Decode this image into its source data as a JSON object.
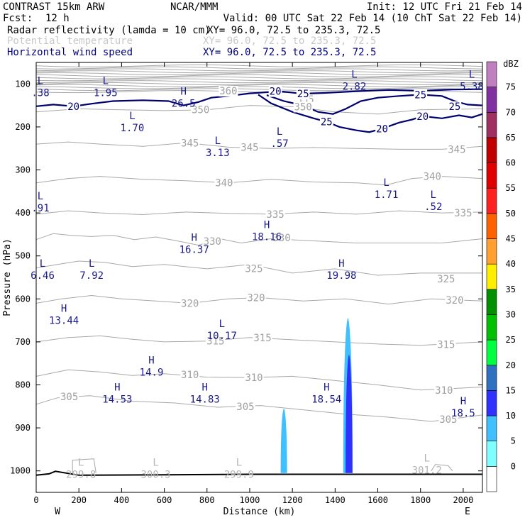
{
  "header": {
    "model": "CONTRAST 15km ARW",
    "center": "NCAR/MMM",
    "init": "Init: 12 UTC Fri 21 Feb 14",
    "fcst_label": "Fcst:",
    "fcst_value": "12 h",
    "valid": "Valid: 00 UTC Sat 22 Feb 14 (10 ChT Sat 22 Feb 14)",
    "fields": [
      {
        "name": "Radar reflectivity (lamda = 10 cm)",
        "xy": "XY=  96.0, 72.5 to 235.3, 72.5",
        "color": "#000000"
      },
      {
        "name": "Potential temperature",
        "xy": "XY=  96.0, 72.5 to 235.3, 72.5",
        "color": "#c8c8c8"
      },
      {
        "name": "Horizontal wind speed",
        "xy": "XY=  96.0, 72.5 to 235.3, 72.5",
        "color": "#000080"
      }
    ]
  },
  "chart_data": {
    "type": "cross-section contour",
    "xlabel": "Distance (km)",
    "ylabel": "Pressure (hPa)",
    "x_end_labels": {
      "left": "W",
      "right": "E"
    },
    "xlim": [
      0,
      2090
    ],
    "ylim": [
      1050,
      50
    ],
    "x_ticks": [
      0,
      200,
      400,
      600,
      800,
      1000,
      1200,
      1400,
      1600,
      1800,
      2000
    ],
    "y_ticks": [
      100,
      200,
      300,
      400,
      500,
      600,
      700,
      800,
      900,
      1000
    ],
    "colorbar": {
      "unit": "dBZ",
      "levels": [
        0,
        5,
        10,
        15,
        20,
        25,
        30,
        35,
        40,
        45,
        50,
        55,
        60,
        65,
        70,
        75
      ],
      "colors": [
        "#ffffff",
        "#80ffff",
        "#40c0ff",
        "#3030ff",
        "#3070c0",
        "#00ff40",
        "#00c000",
        "#009000",
        "#ffee00",
        "#ffa030",
        "#ff6000",
        "#ff2020",
        "#e00000",
        "#c00000",
        "#a03060",
        "#8030a0",
        "#c080c0"
      ]
    },
    "potential_temperature": {
      "color": "#a0a0a0",
      "contour_labels": [
        {
          "text": "360",
          "x": 900,
          "p": 116
        },
        {
          "text": "355",
          "x": 1260,
          "p": 136
        },
        {
          "text": "350",
          "x": 770,
          "p": 160
        },
        {
          "text": "350",
          "x": 1250,
          "p": 153
        },
        {
          "text": "345",
          "x": 720,
          "p": 237
        },
        {
          "text": "345",
          "x": 1000,
          "p": 247
        },
        {
          "text": "345",
          "x": 1970,
          "p": 252
        },
        {
          "text": "340",
          "x": 880,
          "p": 330
        },
        {
          "text": "340",
          "x": 1855,
          "p": 315
        },
        {
          "text": "335",
          "x": 1120,
          "p": 403
        },
        {
          "text": "335",
          "x": 2000,
          "p": 400
        },
        {
          "text": "330",
          "x": 825,
          "p": 466
        },
        {
          "text": "330",
          "x": 1150,
          "p": 458
        },
        {
          "text": "325",
          "x": 1020,
          "p": 529
        },
        {
          "text": "325",
          "x": 1920,
          "p": 553
        },
        {
          "text": "320",
          "x": 720,
          "p": 610
        },
        {
          "text": "320",
          "x": 1030,
          "p": 597
        },
        {
          "text": "320",
          "x": 1960,
          "p": 603
        },
        {
          "text": "315",
          "x": 840,
          "p": 698
        },
        {
          "text": "315",
          "x": 1060,
          "p": 690
        },
        {
          "text": "315",
          "x": 1920,
          "p": 706
        },
        {
          "text": "310",
          "x": 720,
          "p": 776
        },
        {
          "text": "310",
          "x": 1020,
          "p": 783
        },
        {
          "text": "310",
          "x": 1910,
          "p": 812
        },
        {
          "text": "305",
          "x": 155,
          "p": 827
        },
        {
          "text": "305",
          "x": 980,
          "p": 850
        },
        {
          "text": "305",
          "x": 1930,
          "p": 880
        }
      ],
      "extrema": [
        {
          "kind": "L",
          "value": "299.8",
          "x": 210,
          "p": 1005
        },
        {
          "kind": "L",
          "value": "300.3",
          "x": 560,
          "p": 1005
        },
        {
          "kind": "L",
          "value": "299.9",
          "x": 950,
          "p": 1005
        },
        {
          "kind": "L",
          "value": "301.2",
          "x": 1830,
          "p": 995
        }
      ]
    },
    "wind_speed": {
      "color": "#000070",
      "contour_labels": [
        {
          "text": "20",
          "x": 175,
          "p": 152
        },
        {
          "text": "20",
          "x": 1120,
          "p": 117
        },
        {
          "text": "25",
          "x": 1250,
          "p": 123
        },
        {
          "text": "25",
          "x": 1360,
          "p": 188
        },
        {
          "text": "20",
          "x": 1620,
          "p": 204
        },
        {
          "text": "20",
          "x": 1810,
          "p": 175
        },
        {
          "text": "25",
          "x": 1800,
          "p": 125
        },
        {
          "text": "25",
          "x": 1960,
          "p": 152
        }
      ],
      "extrema": [
        {
          "kind": "L",
          "value": ".38",
          "x": 20,
          "p": 115
        },
        {
          "kind": "L",
          "value": "1.95",
          "x": 325,
          "p": 115
        },
        {
          "kind": "H",
          "value": "26.5",
          "x": 690,
          "p": 140
        },
        {
          "kind": "L",
          "value": "2.82",
          "x": 1490,
          "p": 100
        },
        {
          "kind": "L",
          "value": "5.38",
          "x": 2040,
          "p": 100
        },
        {
          "kind": "L",
          "value": "1.70",
          "x": 450,
          "p": 197
        },
        {
          "kind": "L",
          "value": "3.13",
          "x": 850,
          "p": 255
        },
        {
          "kind": "L",
          "value": ".57",
          "x": 1140,
          "p": 233
        },
        {
          "kind": "L",
          "value": "1.71",
          "x": 1640,
          "p": 352
        },
        {
          "kind": "L",
          "value": ".52",
          "x": 1860,
          "p": 380
        },
        {
          "kind": "L",
          "value": ".91",
          "x": 20,
          "p": 383
        },
        {
          "kind": "H",
          "value": "18.16",
          "x": 1080,
          "p": 450
        },
        {
          "kind": "H",
          "value": "16.37",
          "x": 740,
          "p": 480
        },
        {
          "kind": "L",
          "value": "6.46",
          "x": 30,
          "p": 540
        },
        {
          "kind": "L",
          "value": "7.92",
          "x": 260,
          "p": 540
        },
        {
          "kind": "H",
          "value": "19.98",
          "x": 1430,
          "p": 540
        },
        {
          "kind": "H",
          "value": "13.44",
          "x": 130,
          "p": 645
        },
        {
          "kind": "L",
          "value": "10.17",
          "x": 870,
          "p": 680
        },
        {
          "kind": "H",
          "value": "14.9",
          "x": 540,
          "p": 765
        },
        {
          "kind": "H",
          "value": "14.53",
          "x": 380,
          "p": 828
        },
        {
          "kind": "H",
          "value": "14.83",
          "x": 790,
          "p": 828
        },
        {
          "kind": "H",
          "value": "18.54",
          "x": 1360,
          "p": 828
        },
        {
          "kind": "H",
          "value": "18.5",
          "x": 2000,
          "p": 860
        }
      ]
    },
    "reflectivity_cells": [
      {
        "x_center": 1160,
        "half_width": 15,
        "p_top": 855,
        "p_bottom": 1005,
        "dbz_max": 5
      },
      {
        "x_center": 1460,
        "half_width": 22,
        "p_top": 645,
        "p_bottom": 1005,
        "dbz_max": 5
      },
      {
        "x_center": 1465,
        "half_width": 16,
        "p_top": 730,
        "p_bottom": 1005,
        "dbz_max": 10
      }
    ],
    "terrain": {
      "x": [
        0,
        60,
        90,
        200,
        600,
        1000,
        1400,
        2090
      ],
      "p": [
        1010,
        1007,
        1001,
        1010,
        1009,
        1008,
        1008,
        1008
      ]
    }
  }
}
